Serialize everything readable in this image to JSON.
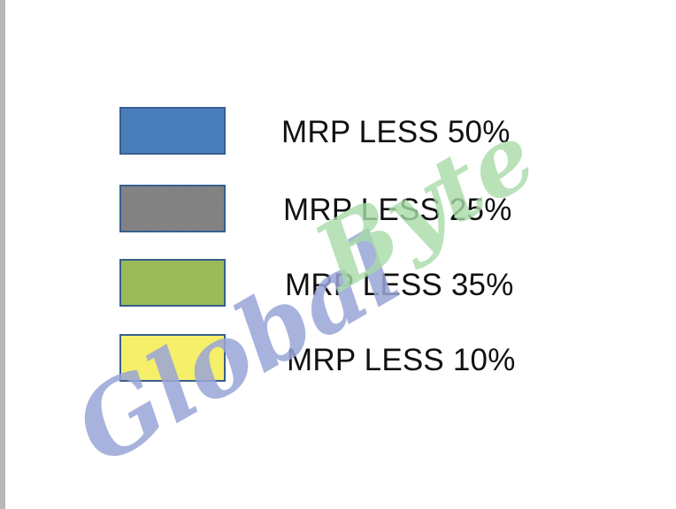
{
  "legend": {
    "items": [
      {
        "label": "MRP LESS 50%",
        "color": "#4a7ebb"
      },
      {
        "label": "MRP LESS 25%",
        "color": "#7f7f7f"
      },
      {
        "label": "MRP LESS 35%",
        "color": "#9bbb59"
      },
      {
        "label": "MRP LESS 10%",
        "color": "#f5ef6a"
      }
    ]
  },
  "watermark": {
    "line1": "Global",
    "line2": "Byte",
    "color1": "#9aa6d8",
    "color2": "#a8dca8"
  }
}
